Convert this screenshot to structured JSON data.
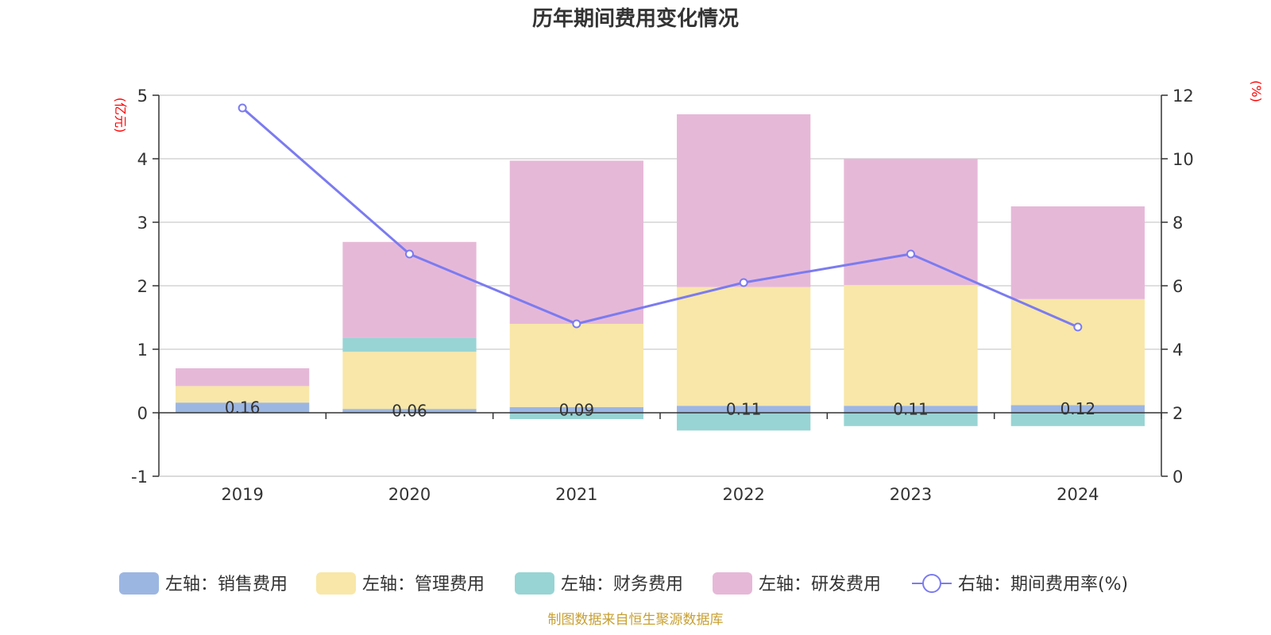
{
  "chart_data": {
    "type": "bar",
    "title": "历年期间费用变化情况",
    "categories": [
      "2019",
      "2020",
      "2021",
      "2022",
      "2023",
      "2024"
    ],
    "left_axis": {
      "unit": "(亿元)",
      "ylim": [
        -1,
        5
      ],
      "ticks": [
        "-1",
        "0",
        "1",
        "2",
        "3",
        "4",
        "5"
      ]
    },
    "right_axis": {
      "unit": "(%)",
      "ylim": [
        0,
        12
      ],
      "ticks": [
        "0",
        "2",
        "4",
        "6",
        "8",
        "10",
        "12"
      ]
    },
    "series": [
      {
        "name": "左轴：销售费用",
        "kind": "bar",
        "axis": "left",
        "color": "#9cb6e2",
        "values": [
          0.16,
          0.06,
          0.09,
          0.11,
          0.11,
          0.12
        ],
        "labels": [
          "0.16",
          "0.06",
          "0.09",
          "0.11",
          "0.11",
          "0.12"
        ]
      },
      {
        "name": "左轴：管理费用",
        "kind": "bar",
        "axis": "left",
        "color": "#f8e7a8",
        "values": [
          0.26,
          0.9,
          1.31,
          1.87,
          1.9,
          1.67
        ]
      },
      {
        "name": "左轴：财务费用",
        "kind": "bar",
        "axis": "left",
        "color": "#98d4d4",
        "values": [
          0.0,
          0.22,
          -0.1,
          -0.28,
          -0.21,
          -0.21
        ]
      },
      {
        "name": "左轴：研发费用",
        "kind": "bar",
        "axis": "left",
        "color": "#e6b8d8",
        "values": [
          0.28,
          1.51,
          2.57,
          2.72,
          1.99,
          1.46
        ]
      },
      {
        "name": "右轴：期间费用率(%)",
        "kind": "line",
        "axis": "right",
        "color": "#7b7bf0",
        "values": [
          11.6,
          7.0,
          4.8,
          6.1,
          7.0,
          4.7
        ]
      }
    ],
    "grid": true,
    "legend_position": "bottom",
    "source_note": "制图数据来自恒生聚源数据库"
  }
}
